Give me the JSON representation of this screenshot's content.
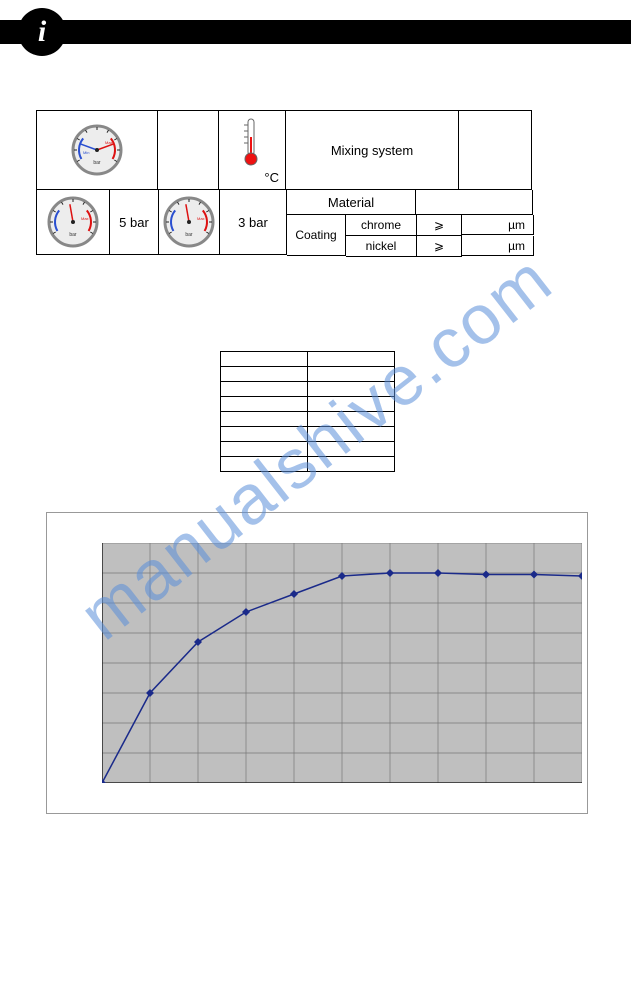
{
  "header": {
    "icon_letter": "i"
  },
  "spec": {
    "pressure1": "5 bar",
    "pressure2": "3 bar",
    "temp_unit": "°C",
    "mixing_label": "Mixing system",
    "material_label": "Material",
    "coating_label": "Coating",
    "coating_rows": [
      {
        "name": "chrome",
        "sym": "⩾",
        "unit": "µm"
      },
      {
        "name": "nickel",
        "sym": "⩾",
        "unit": "µm"
      }
    ]
  },
  "gauge_style": {
    "bg": "#ededed",
    "ring": "#888",
    "tick": "#222",
    "arc_red": "#d11",
    "arc_blue": "#2a4fd0",
    "needle1": "#d11",
    "needle2": "#2a4fd0"
  },
  "thermometer": {
    "tube": "#666",
    "bulb": "#e11"
  },
  "mid_table": {
    "rows": 8,
    "cols": 2
  },
  "chart": {
    "type": "line",
    "bg": "#bfbfbf",
    "grid_color": "#777",
    "axis_color": "#222",
    "line_color": "#1a2a8a",
    "marker_color": "#1a2a8a",
    "marker_size": 4,
    "line_width": 1.5,
    "xlim": [
      0,
      10
    ],
    "ylim": [
      0,
      8
    ],
    "xtick_step": 1,
    "ytick_step": 1,
    "points": [
      {
        "x": 0,
        "y": 0
      },
      {
        "x": 1,
        "y": 3.0
      },
      {
        "x": 2,
        "y": 4.7
      },
      {
        "x": 3,
        "y": 5.7
      },
      {
        "x": 4,
        "y": 6.3
      },
      {
        "x": 5,
        "y": 6.9
      },
      {
        "x": 6,
        "y": 7.0
      },
      {
        "x": 7,
        "y": 7.0
      },
      {
        "x": 8,
        "y": 6.95
      },
      {
        "x": 9,
        "y": 6.95
      },
      {
        "x": 10,
        "y": 6.9
      }
    ]
  },
  "watermark": "manualshive.com"
}
